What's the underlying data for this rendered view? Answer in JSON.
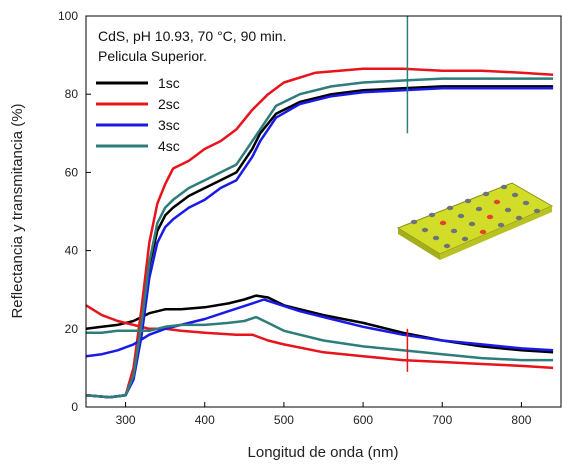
{
  "chart_data": {
    "type": "line",
    "title": "",
    "annotations": [
      "CdS, pH 10.93, 70 °C, 90 min.",
      "Pelicula Superior."
    ],
    "xlabel": "Longitud de onda (nm)",
    "ylabel": "Reflectancia y transmitancia (%)",
    "xlim": [
      250,
      850
    ],
    "ylim": [
      0,
      100
    ],
    "xticks": [
      300,
      400,
      500,
      600,
      700,
      800
    ],
    "yticks": [
      0,
      20,
      40,
      60,
      80,
      100
    ],
    "grid": false,
    "legend_position": "top-left",
    "series": [
      {
        "name": "1sc",
        "color": "#000000",
        "transmittance": [
          [
            250,
            3
          ],
          [
            280,
            2.5
          ],
          [
            300,
            3
          ],
          [
            310,
            8
          ],
          [
            320,
            20
          ],
          [
            330,
            36
          ],
          [
            340,
            45
          ],
          [
            350,
            49
          ],
          [
            360,
            51
          ],
          [
            380,
            54
          ],
          [
            400,
            56
          ],
          [
            420,
            58
          ],
          [
            440,
            60
          ],
          [
            460,
            66
          ],
          [
            470,
            70
          ],
          [
            490,
            75
          ],
          [
            520,
            78
          ],
          [
            560,
            80
          ],
          [
            600,
            81
          ],
          [
            650,
            81.5
          ],
          [
            700,
            82
          ],
          [
            750,
            82
          ],
          [
            800,
            82
          ],
          [
            840,
            82
          ]
        ],
        "reflectance": [
          [
            250,
            20
          ],
          [
            270,
            20.5
          ],
          [
            290,
            21
          ],
          [
            310,
            22
          ],
          [
            330,
            24
          ],
          [
            350,
            25
          ],
          [
            370,
            25
          ],
          [
            400,
            25.5
          ],
          [
            430,
            26.5
          ],
          [
            450,
            27.5
          ],
          [
            465,
            28.5
          ],
          [
            480,
            28
          ],
          [
            500,
            26
          ],
          [
            550,
            23.5
          ],
          [
            600,
            21.5
          ],
          [
            650,
            19
          ],
          [
            700,
            17
          ],
          [
            750,
            15.5
          ],
          [
            800,
            14.5
          ],
          [
            840,
            14
          ]
        ]
      },
      {
        "name": "2sc",
        "color": "#e8141b",
        "transmittance": [
          [
            250,
            3
          ],
          [
            280,
            2.5
          ],
          [
            300,
            3
          ],
          [
            310,
            10
          ],
          [
            320,
            25
          ],
          [
            330,
            42
          ],
          [
            340,
            52
          ],
          [
            350,
            57
          ],
          [
            360,
            61
          ],
          [
            380,
            63
          ],
          [
            400,
            66
          ],
          [
            420,
            68
          ],
          [
            440,
            71
          ],
          [
            460,
            76
          ],
          [
            480,
            80
          ],
          [
            500,
            83
          ],
          [
            540,
            85.5
          ],
          [
            600,
            86.5
          ],
          [
            650,
            86.5
          ],
          [
            700,
            86
          ],
          [
            750,
            86
          ],
          [
            800,
            85.5
          ],
          [
            840,
            85
          ]
        ],
        "reflectance": [
          [
            250,
            26
          ],
          [
            270,
            23.5
          ],
          [
            290,
            22
          ],
          [
            310,
            21
          ],
          [
            330,
            20
          ],
          [
            350,
            20
          ],
          [
            370,
            19.5
          ],
          [
            400,
            19
          ],
          [
            440,
            18.5
          ],
          [
            460,
            18.5
          ],
          [
            480,
            17
          ],
          [
            500,
            16
          ],
          [
            550,
            14
          ],
          [
            600,
            13
          ],
          [
            650,
            12
          ],
          [
            700,
            11.5
          ],
          [
            750,
            11
          ],
          [
            800,
            10.5
          ],
          [
            840,
            10
          ]
        ]
      },
      {
        "name": "3sc",
        "color": "#1a1ae6",
        "transmittance": [
          [
            250,
            3
          ],
          [
            280,
            2.5
          ],
          [
            300,
            3
          ],
          [
            310,
            7
          ],
          [
            320,
            18
          ],
          [
            330,
            33
          ],
          [
            340,
            42
          ],
          [
            350,
            46
          ],
          [
            360,
            48
          ],
          [
            380,
            51
          ],
          [
            400,
            53
          ],
          [
            420,
            56
          ],
          [
            440,
            58
          ],
          [
            460,
            64
          ],
          [
            470,
            68
          ],
          [
            490,
            74
          ],
          [
            520,
            77.5
          ],
          [
            560,
            79.5
          ],
          [
            600,
            80.5
          ],
          [
            650,
            81
          ],
          [
            700,
            81.5
          ],
          [
            750,
            81.5
          ],
          [
            800,
            81.5
          ],
          [
            840,
            81.5
          ]
        ],
        "reflectance": [
          [
            250,
            13
          ],
          [
            270,
            13.5
          ],
          [
            290,
            14.5
          ],
          [
            310,
            16
          ],
          [
            330,
            18.5
          ],
          [
            350,
            20
          ],
          [
            370,
            21
          ],
          [
            400,
            22.5
          ],
          [
            430,
            24.5
          ],
          [
            460,
            26.5
          ],
          [
            475,
            27.5
          ],
          [
            490,
            26.5
          ],
          [
            520,
            24.5
          ],
          [
            560,
            22.5
          ],
          [
            600,
            20.5
          ],
          [
            650,
            18.5
          ],
          [
            700,
            17
          ],
          [
            750,
            16
          ],
          [
            800,
            15
          ],
          [
            840,
            14.5
          ]
        ]
      },
      {
        "name": "4sc",
        "color": "#2e7d7b",
        "transmittance": [
          [
            250,
            3
          ],
          [
            280,
            2.5
          ],
          [
            300,
            3
          ],
          [
            310,
            8
          ],
          [
            320,
            21
          ],
          [
            330,
            37
          ],
          [
            340,
            47
          ],
          [
            350,
            51
          ],
          [
            360,
            53
          ],
          [
            380,
            56
          ],
          [
            400,
            58
          ],
          [
            420,
            60
          ],
          [
            440,
            62
          ],
          [
            460,
            68
          ],
          [
            470,
            71
          ],
          [
            490,
            77
          ],
          [
            520,
            80
          ],
          [
            560,
            82
          ],
          [
            600,
            83
          ],
          [
            650,
            83.5
          ],
          [
            700,
            84
          ],
          [
            750,
            84
          ],
          [
            800,
            84
          ],
          [
            840,
            84
          ]
        ],
        "reflectance": [
          [
            250,
            19
          ],
          [
            270,
            19
          ],
          [
            290,
            19.5
          ],
          [
            310,
            19.5
          ],
          [
            330,
            19.5
          ],
          [
            350,
            20.5
          ],
          [
            370,
            21
          ],
          [
            400,
            21
          ],
          [
            430,
            21.5
          ],
          [
            450,
            22
          ],
          [
            465,
            23
          ],
          [
            480,
            21.5
          ],
          [
            500,
            19.5
          ],
          [
            550,
            17
          ],
          [
            600,
            15.5
          ],
          [
            650,
            14.5
          ],
          [
            700,
            13.5
          ],
          [
            750,
            12.5
          ],
          [
            800,
            12
          ],
          [
            840,
            12
          ]
        ]
      }
    ]
  }
}
